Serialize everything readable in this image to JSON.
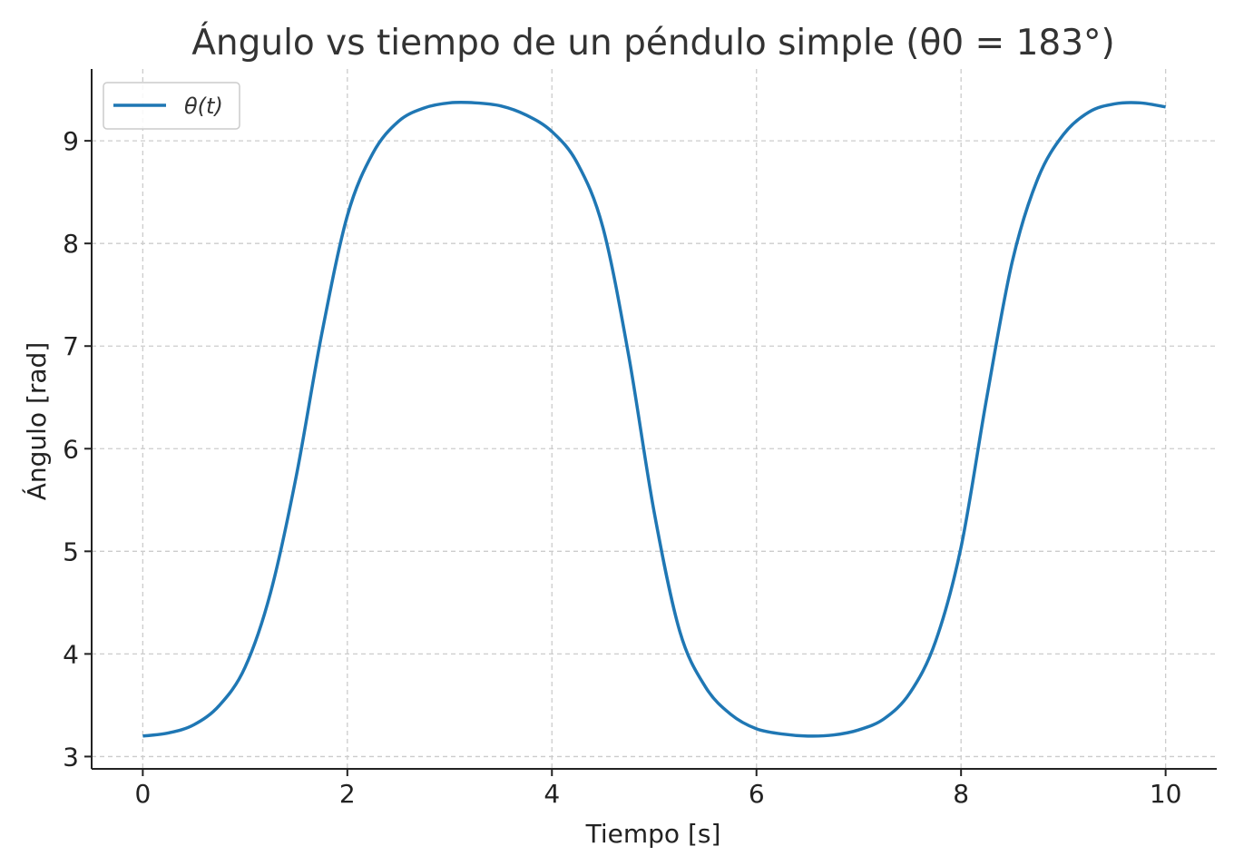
{
  "chart_data": {
    "type": "line",
    "title": "Ángulo vs tiempo de un péndulo simple (θ0 = 183°)",
    "xlabel": "Tiempo [s]",
    "ylabel": "Ángulo [rad]",
    "xlim": [
      -0.5,
      10.5
    ],
    "ylim": [
      2.88,
      9.7
    ],
    "xticks": [
      0,
      2,
      4,
      6,
      8,
      10
    ],
    "yticks": [
      3,
      4,
      5,
      6,
      7,
      8,
      9
    ],
    "grid": true,
    "legend_position": "top-left",
    "colors": {
      "line": "#1f77b4",
      "grid": "#cccccc",
      "axis": "#222222"
    },
    "series": [
      {
        "name": "θ(t)",
        "x": [
          0,
          0.25,
          0.5,
          0.75,
          1.0,
          1.25,
          1.5,
          1.75,
          2.0,
          2.25,
          2.5,
          2.75,
          3.0,
          3.25,
          3.5,
          3.75,
          4.0,
          4.25,
          4.5,
          4.75,
          5.0,
          5.25,
          5.5,
          5.75,
          6.0,
          6.25,
          6.5,
          6.75,
          7.0,
          7.25,
          7.5,
          7.75,
          8.0,
          8.25,
          8.5,
          8.75,
          9.0,
          9.25,
          9.5,
          9.75,
          10.0
        ],
        "values": [
          3.2,
          3.23,
          3.31,
          3.5,
          3.87,
          4.6,
          5.73,
          7.12,
          8.27,
          8.88,
          9.19,
          9.32,
          9.37,
          9.37,
          9.34,
          9.25,
          9.09,
          8.78,
          8.15,
          6.91,
          5.38,
          4.22,
          3.68,
          3.41,
          3.27,
          3.22,
          3.2,
          3.21,
          3.26,
          3.37,
          3.62,
          4.12,
          5.04,
          6.49,
          7.82,
          8.63,
          9.06,
          9.28,
          9.36,
          9.37,
          9.33
        ]
      }
    ]
  }
}
